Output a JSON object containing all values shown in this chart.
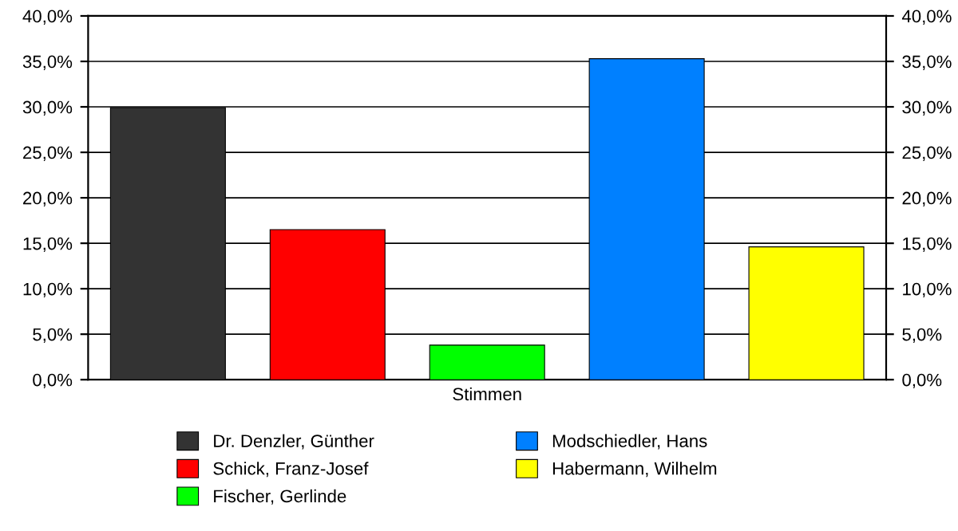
{
  "chart_data": {
    "type": "bar",
    "categories": [
      "Stimmen"
    ],
    "series": [
      {
        "name": "Dr. Denzler, Günther",
        "color": "#333333",
        "values": [
          29.9
        ]
      },
      {
        "name": "Schick, Franz-Josef",
        "color": "#ff0000",
        "values": [
          16.5
        ]
      },
      {
        "name": "Fischer, Gerlinde",
        "color": "#00ff00",
        "values": [
          3.8
        ]
      },
      {
        "name": "Modschiedler, Hans",
        "color": "#0080ff",
        "values": [
          35.3
        ]
      },
      {
        "name": "Habermann, Wilhelm",
        "color": "#ffff00",
        "values": [
          14.6
        ]
      }
    ],
    "ylim": [
      0,
      40
    ],
    "yticks": [
      {
        "value": 0,
        "label": "0,0%"
      },
      {
        "value": 5,
        "label": "5,0%"
      },
      {
        "value": 10,
        "label": "10,0%"
      },
      {
        "value": 15,
        "label": "15,0%"
      },
      {
        "value": 20,
        "label": "20,0%"
      },
      {
        "value": 25,
        "label": "25,0%"
      },
      {
        "value": 30,
        "label": "30,0%"
      },
      {
        "value": 35,
        "label": "35,0%"
      },
      {
        "value": 40,
        "label": "40,0%"
      }
    ],
    "grid": "y",
    "legend": "bottom"
  }
}
